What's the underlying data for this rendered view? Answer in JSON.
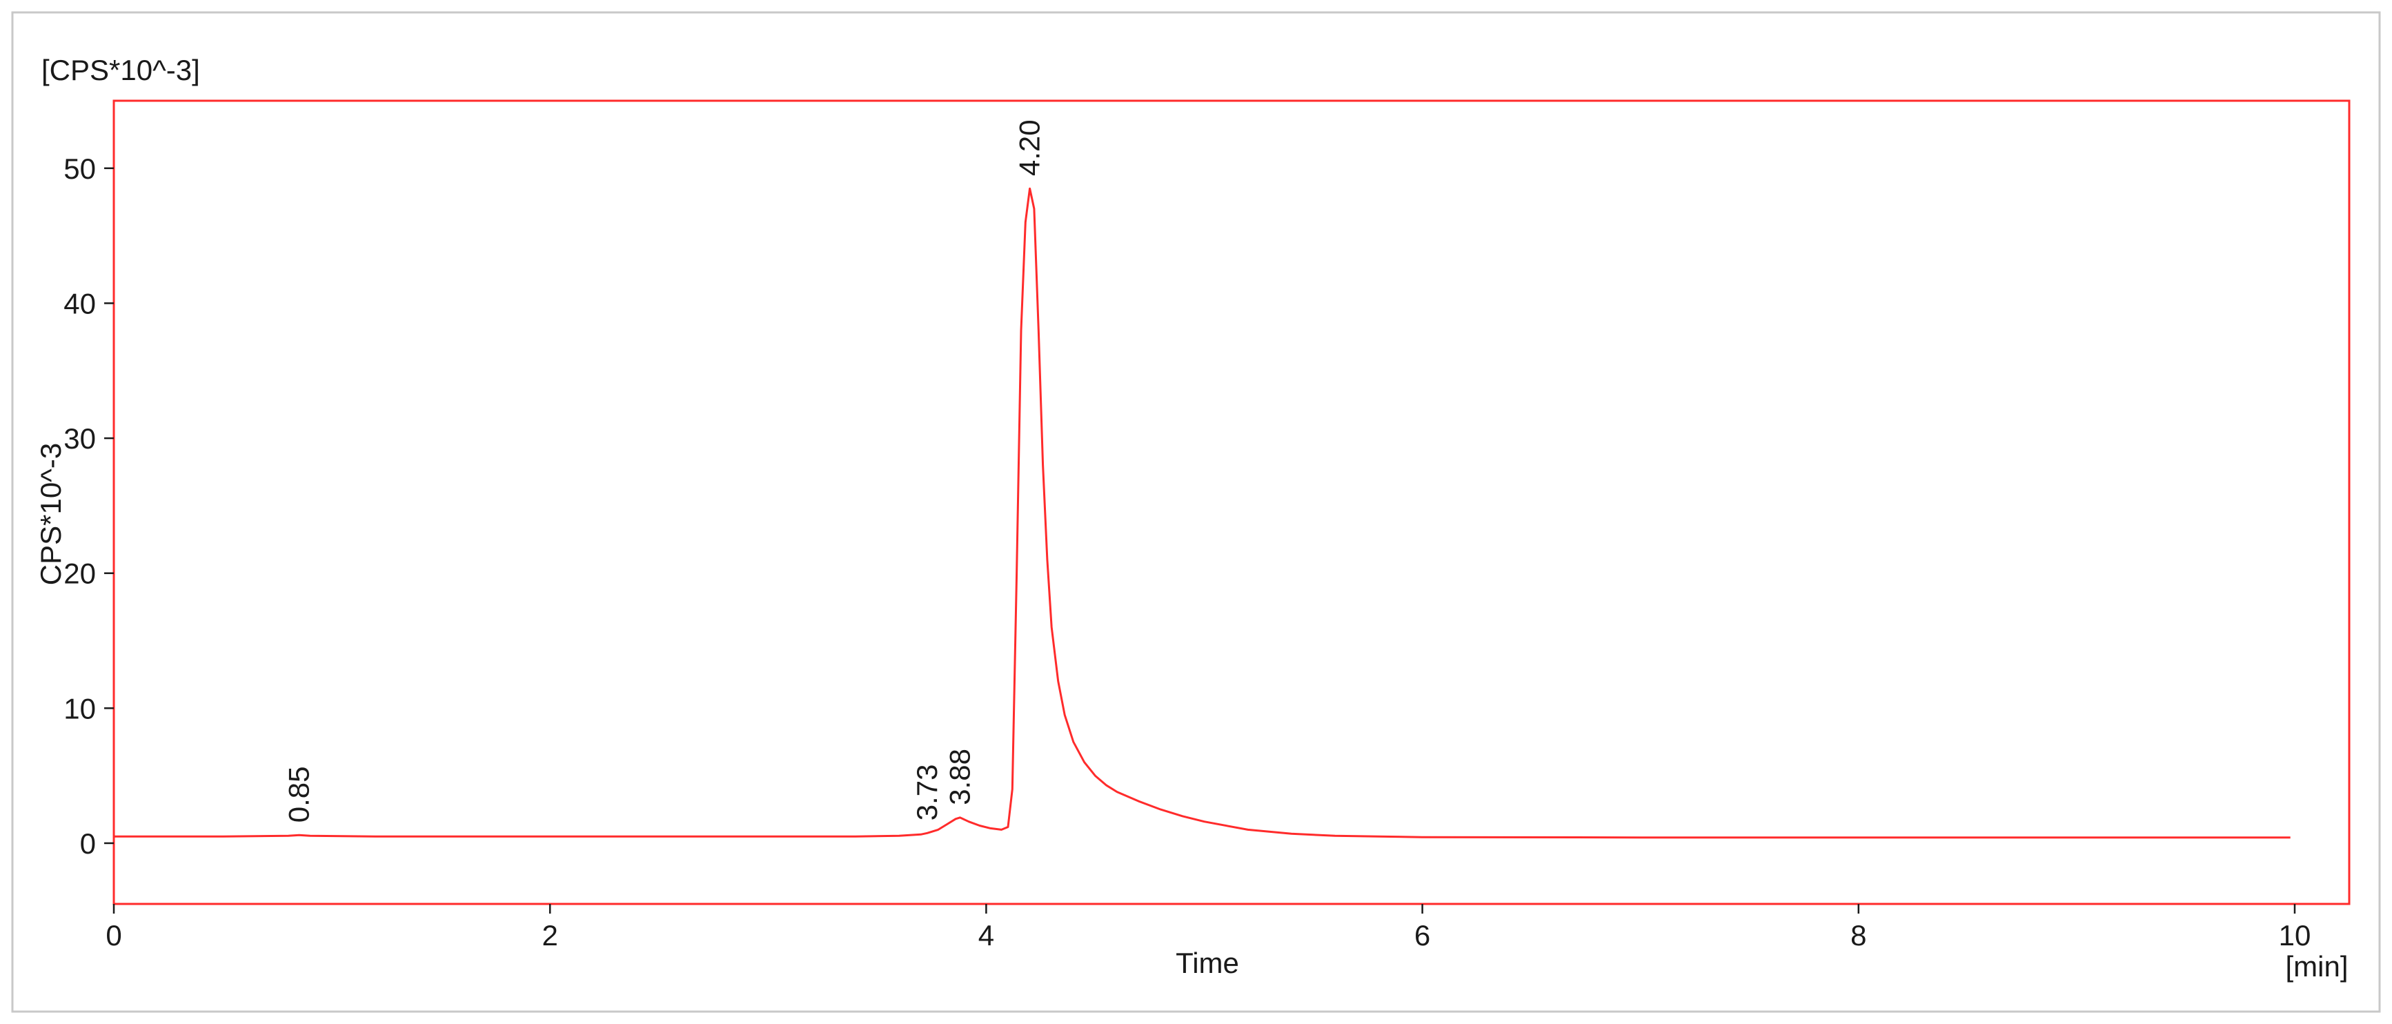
{
  "chart_data": {
    "type": "line",
    "title": "",
    "unit_label": "[CPS*10^-3]",
    "xlabel": "Time",
    "x_unit_label": "[min]",
    "ylabel": "CPS*10^-3",
    "xlim": [
      0,
      10.25
    ],
    "ylim": [
      -4.5,
      55
    ],
    "x_ticks": [
      0,
      2,
      4,
      6,
      8,
      10
    ],
    "y_ticks": [
      0,
      10,
      20,
      30,
      40,
      50
    ],
    "grid": false,
    "legend": "none",
    "colors": {
      "trace": "#ff2b2b",
      "frame": "#ff2b2b",
      "outer_border": "#c8c8c8"
    },
    "series": [
      {
        "x": [
          0,
          0.5,
          0.8,
          0.85,
          0.9,
          1.2,
          2.0,
          3.0,
          3.4,
          3.6,
          3.7,
          3.73,
          3.78,
          3.82,
          3.86,
          3.88,
          3.92,
          3.97,
          4.02,
          4.07,
          4.1,
          4.12,
          4.14,
          4.16,
          4.18,
          4.2,
          4.22,
          4.24,
          4.26,
          4.28,
          4.3,
          4.33,
          4.36,
          4.4,
          4.45,
          4.5,
          4.55,
          4.6,
          4.7,
          4.8,
          4.9,
          5.0,
          5.2,
          5.4,
          5.6,
          5.8,
          6.0,
          7.0,
          8.0,
          9.0,
          9.98
        ],
        "y": [
          0.5,
          0.5,
          0.55,
          0.6,
          0.55,
          0.5,
          0.5,
          0.5,
          0.5,
          0.55,
          0.65,
          0.75,
          1.0,
          1.4,
          1.8,
          1.9,
          1.6,
          1.3,
          1.1,
          1.0,
          1.2,
          4.0,
          20.0,
          38.0,
          46.0,
          48.5,
          47.0,
          38.0,
          28.0,
          21.0,
          16.0,
          12.0,
          9.5,
          7.5,
          6.0,
          5.0,
          4.3,
          3.8,
          3.1,
          2.5,
          2.0,
          1.6,
          1.0,
          0.7,
          0.55,
          0.5,
          0.45,
          0.42,
          0.42,
          0.42,
          0.42
        ]
      }
    ],
    "annotations": [
      {
        "text": "0.85",
        "x": 0.85,
        "y": 0.6
      },
      {
        "text": "3.73",
        "x": 3.73,
        "y": 0.75
      },
      {
        "text": "3.88",
        "x": 3.88,
        "y": 1.9
      },
      {
        "text": "4.20",
        "x": 4.2,
        "y": 48.5
      }
    ]
  }
}
